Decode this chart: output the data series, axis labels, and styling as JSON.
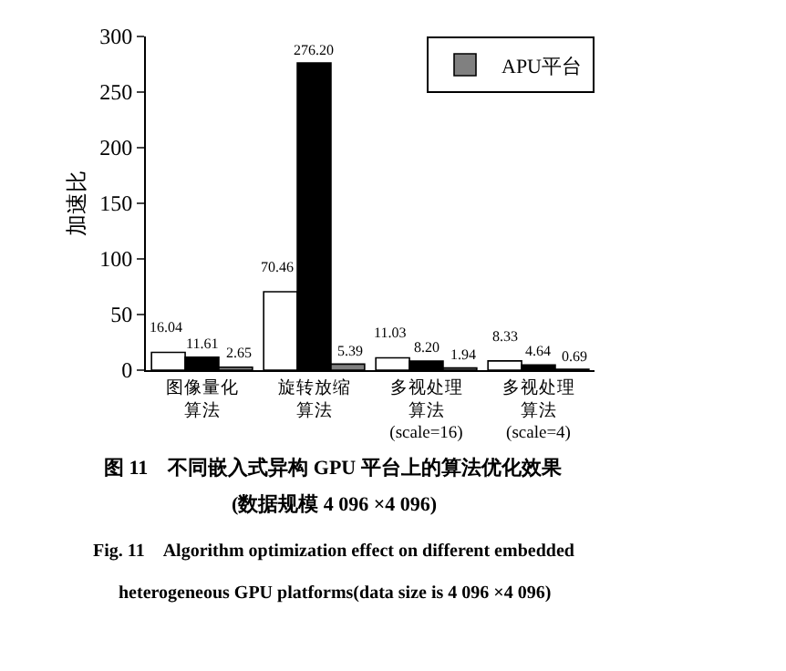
{
  "chart_data": {
    "type": "bar",
    "ylabel": "加速比",
    "categories": [
      "图像量化算法",
      "旋转放缩算法",
      "多视处理算法(scale=16)",
      "多视处理算法(scale=4)"
    ],
    "series": [
      {
        "color": "#ffffff",
        "values": [
          16.04,
          70.46,
          11.03,
          8.33
        ]
      },
      {
        "color": "#000000",
        "values": [
          11.61,
          276.2,
          8.2,
          4.64
        ],
        "value_labels": [
          "11.61",
          "276.20",
          "8.20",
          "4.64"
        ]
      },
      {
        "name": "APU平台",
        "color": "#808080",
        "values": [
          2.65,
          5.39,
          1.94,
          0.69
        ]
      }
    ],
    "data_labels": true,
    "ylim": [
      0,
      300
    ],
    "yticks": [
      0,
      50,
      100,
      150,
      200,
      250,
      300
    ],
    "grid": false,
    "legend": "top right",
    "annotations": [
      "图 11　不同嵌入式异构 GPU 平台上的算法优化效果",
      "(数据规模 4 096 ×4 096)",
      "Fig. 11　Algorithm optimization effect on different embedded",
      "heterogeneous GPU platforms(data size is 4 096 ×4 096)"
    ]
  }
}
